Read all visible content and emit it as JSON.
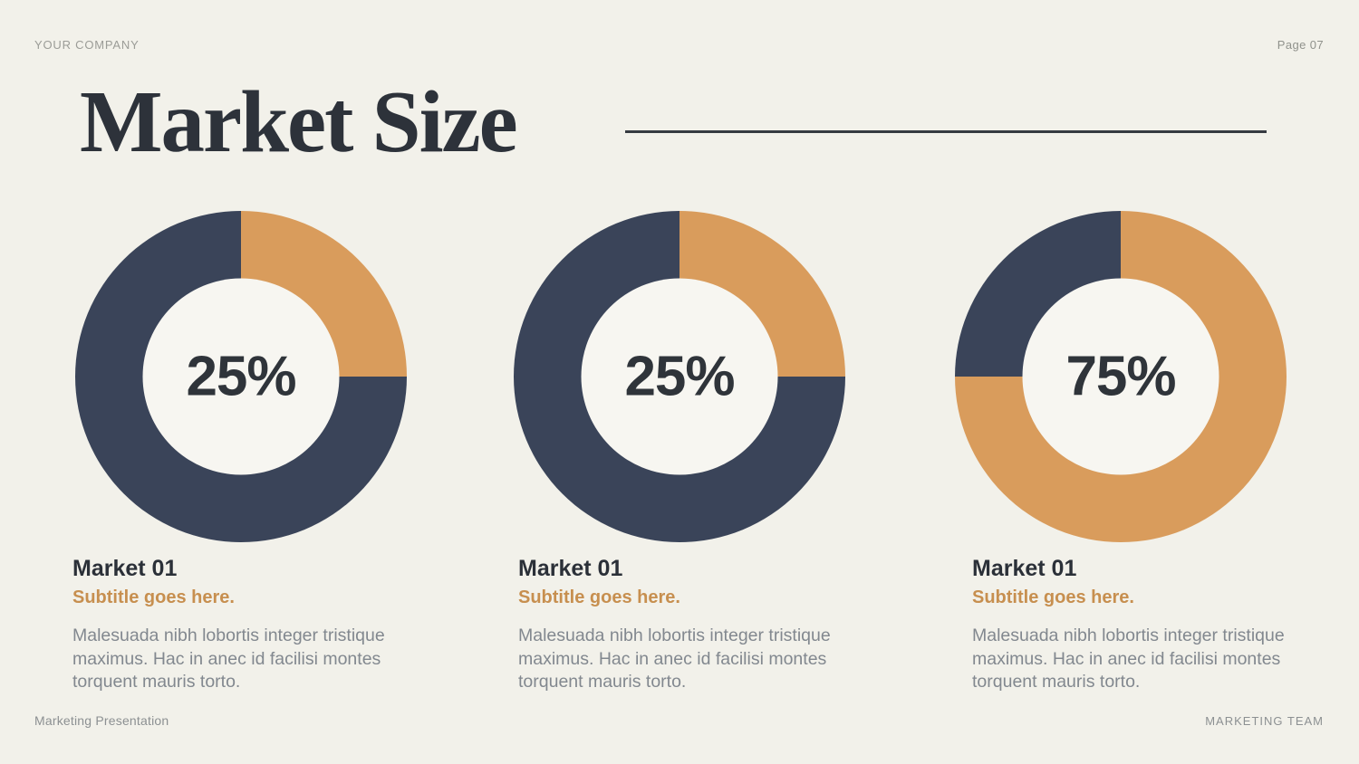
{
  "header": {
    "company": "YOUR COMPANY",
    "page_number": "Page 07"
  },
  "title": "Market Size",
  "colors": {
    "background": "#f2f1ea",
    "navy": "#3a4459",
    "orange": "#d99c5c",
    "subtitle_orange": "#c78f4f",
    "heading_dark": "#2d323a",
    "body_gray": "#82888f",
    "hole": "#f7f6f1",
    "rule": "#363b41"
  },
  "chart_data": [
    {
      "type": "pie",
      "variant": "donut",
      "title": "Market 01",
      "subtitle": "Subtitle goes here.",
      "description": "Malesuada nibh lobortis integer tristique maximus. Hac in anec id facilisi montes torquent mauris torto.",
      "center_label": "25%",
      "start_angle_deg": 0,
      "direction": "clockwise",
      "slices": [
        {
          "name": "highlighted share",
          "value": 25,
          "color": "#d99c5c"
        },
        {
          "name": "remainder",
          "value": 75,
          "color": "#3a4459"
        }
      ]
    },
    {
      "type": "pie",
      "variant": "donut",
      "title": "Market 01",
      "subtitle": "Subtitle goes here.",
      "description": "Malesuada nibh lobortis integer tristique maximus. Hac in anec id facilisi montes torquent mauris torto.",
      "center_label": "25%",
      "start_angle_deg": 0,
      "direction": "clockwise",
      "slices": [
        {
          "name": "highlighted share",
          "value": 25,
          "color": "#d99c5c"
        },
        {
          "name": "remainder",
          "value": 75,
          "color": "#3a4459"
        }
      ]
    },
    {
      "type": "pie",
      "variant": "donut",
      "title": "Market 01",
      "subtitle": "Subtitle goes here.",
      "description": "Malesuada nibh lobortis integer tristique maximus. Hac in anec id facilisi montes torquent mauris torto.",
      "center_label": "75%",
      "start_angle_deg": 0,
      "direction": "clockwise",
      "slices": [
        {
          "name": "highlighted share",
          "value": 75,
          "color": "#d99c5c"
        },
        {
          "name": "remainder",
          "value": 25,
          "color": "#3a4459"
        }
      ]
    }
  ],
  "footer": {
    "left": "Marketing Presentation",
    "right": "MARKETING TEAM"
  }
}
